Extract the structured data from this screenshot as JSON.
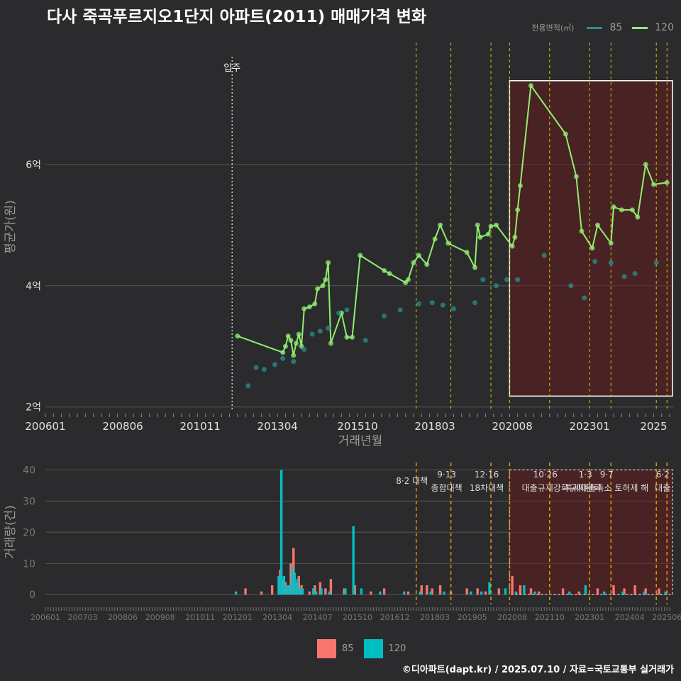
{
  "title": "다사 죽곡푸르지오1단지 아파트(2011) 매매가격 변화",
  "legend": {
    "label": "전용면적(㎡)",
    "items": [
      {
        "name": "85",
        "color": "#2a8f8f",
        "fill": "#f8766d"
      },
      {
        "name": "120",
        "color": "#90ee70",
        "fill": "#00bfc4"
      }
    ]
  },
  "credit": "©디아파트(dapt.kr) / 2025.07.10 / 자료=국토교통부 실거래가",
  "chart_data": [
    {
      "type": "line",
      "xlabel": "거래년월",
      "ylabel": "평균가(원)",
      "x_ticks": [
        "200601",
        "200806",
        "201011",
        "201304",
        "201510",
        "201803",
        "202008",
        "202301",
        "2025"
      ],
      "y_ticks": [
        {
          "value": 2,
          "label": "2억"
        },
        {
          "value": 4,
          "label": "4억"
        },
        {
          "value": 6,
          "label": "6억"
        }
      ],
      "ylim": [
        1.95,
        7.6
      ],
      "xlim": [
        "2006-01",
        "2025-07"
      ],
      "move_in": {
        "date": "2011-11",
        "label": "입주"
      },
      "policy_lines": [
        "2017-08",
        "2018-09",
        "2019-12",
        "2020-07",
        "2021-10",
        "2023-01",
        "2023-09",
        "2025-02",
        "2025-06"
      ],
      "highlight": {
        "start": "2020-07",
        "end": "2025-07",
        "y_range": [
          2.18,
          7.38
        ]
      },
      "series": [
        {
          "name": "120",
          "color": "#90ee70",
          "points": [
            [
              "2012-01",
              3.17
            ],
            [
              "2013-06",
              2.9
            ],
            [
              "2013-07",
              3.0
            ],
            [
              "2013-08",
              3.17
            ],
            [
              "2013-09",
              3.1
            ],
            [
              "2013-10",
              2.85
            ],
            [
              "2013-11",
              3.05
            ],
            [
              "2013-12",
              3.2
            ],
            [
              "2014-01",
              3.0
            ],
            [
              "2014-02",
              3.62
            ],
            [
              "2014-04",
              3.65
            ],
            [
              "2014-06",
              3.7
            ],
            [
              "2014-07",
              3.95
            ],
            [
              "2014-09",
              4.0
            ],
            [
              "2014-10",
              4.1
            ],
            [
              "2014-11",
              4.38
            ],
            [
              "2014-12",
              3.05
            ],
            [
              "2015-04",
              3.55
            ],
            [
              "2015-06",
              3.15
            ],
            [
              "2015-08",
              3.15
            ],
            [
              "2015-11",
              4.5
            ],
            [
              "2016-08",
              4.25
            ],
            [
              "2016-10",
              4.2
            ],
            [
              "2017-04",
              4.05
            ],
            [
              "2017-05",
              4.1
            ],
            [
              "2017-07",
              4.38
            ],
            [
              "2017-09",
              4.5
            ],
            [
              "2017-12",
              4.35
            ],
            [
              "2018-03",
              4.77
            ],
            [
              "2018-05",
              5.0
            ],
            [
              "2018-08",
              4.7
            ],
            [
              "2019-03",
              4.55
            ],
            [
              "2019-06",
              4.3
            ],
            [
              "2019-07",
              5.0
            ],
            [
              "2019-08",
              4.8
            ],
            [
              "2019-11",
              4.85
            ],
            [
              "2019-12",
              4.98
            ],
            [
              "2020-02",
              5.0
            ],
            [
              "2020-08",
              4.65
            ],
            [
              "2020-09",
              4.8
            ],
            [
              "2020-10",
              5.25
            ],
            [
              "2020-11",
              5.65
            ],
            [
              "2021-03",
              7.3
            ],
            [
              "2022-04",
              6.5
            ],
            [
              "2022-08",
              5.8
            ],
            [
              "2022-10",
              4.9
            ],
            [
              "2023-02",
              4.62
            ],
            [
              "2023-04",
              5.0
            ],
            [
              "2023-09",
              4.7
            ],
            [
              "2023-10",
              5.3
            ],
            [
              "2024-01",
              5.25
            ],
            [
              "2024-05",
              5.25
            ],
            [
              "2024-07",
              5.13
            ],
            [
              "2024-10",
              6.0
            ],
            [
              "2025-01",
              5.67
            ],
            [
              "2025-06",
              5.7
            ]
          ]
        },
        {
          "name": "85",
          "color": "#2a8f8f",
          "points": [
            [
              "2012-05",
              2.35
            ],
            [
              "2012-08",
              2.65
            ],
            [
              "2012-11",
              2.62
            ],
            [
              "2013-03",
              2.7
            ],
            [
              "2013-06",
              2.8
            ],
            [
              "2013-10",
              2.75
            ],
            [
              "2014-02",
              2.95
            ],
            [
              "2014-05",
              3.2
            ],
            [
              "2014-08",
              3.25
            ],
            [
              "2014-11",
              3.3
            ],
            [
              "2015-03",
              3.55
            ],
            [
              "2015-06",
              3.6
            ],
            [
              "2016-01",
              3.1
            ],
            [
              "2016-08",
              3.5
            ],
            [
              "2017-02",
              3.6
            ],
            [
              "2017-09",
              3.7
            ],
            [
              "2018-02",
              3.72
            ],
            [
              "2018-06",
              3.68
            ],
            [
              "2018-10",
              3.62
            ],
            [
              "2019-06",
              3.72
            ],
            [
              "2019-09",
              4.1
            ],
            [
              "2020-02",
              4.0
            ],
            [
              "2020-06",
              4.1
            ],
            [
              "2020-10",
              4.1
            ],
            [
              "2021-08",
              4.5
            ],
            [
              "2022-06",
              4.0
            ],
            [
              "2022-11",
              3.8
            ],
            [
              "2023-03",
              4.4
            ],
            [
              "2023-09",
              4.38
            ],
            [
              "2024-02",
              4.15
            ],
            [
              "2024-06",
              4.2
            ],
            [
              "2025-02",
              4.38
            ]
          ]
        }
      ]
    },
    {
      "type": "bar",
      "ylabel": "거래량(건)",
      "x_ticks": [
        "200601",
        "200703",
        "200806",
        "200908",
        "201011",
        "201201",
        "201304",
        "201407",
        "201510",
        "201612",
        "201803",
        "201905",
        "202008",
        "202110",
        "202301",
        "202404",
        "202506"
      ],
      "y_ticks": [
        0,
        10,
        20,
        30,
        40
      ],
      "ylim": [
        -2,
        41
      ],
      "policy_events": [
        {
          "date": "2017-08",
          "text1": "8·2 대책",
          "text2": ""
        },
        {
          "date": "2018-09",
          "text1": "9·13",
          "text2": "종합대책"
        },
        {
          "date": "2019-12",
          "text1": "12·16",
          "text2": "18차대책"
        },
        {
          "date": "2020-07",
          "text1": "",
          "text2": ""
        },
        {
          "date": "2021-10",
          "text1": "10·26",
          "text2": "대출규제강화"
        },
        {
          "date": "2023-01",
          "text1": "1·3",
          "text2": "규제완화"
        },
        {
          "date": "2023-09",
          "text1": "9·7",
          "text2": "특례대출축소 토허제 해"
        },
        {
          "date": "2025-02",
          "text1": "",
          "text2": ""
        },
        {
          "date": "2025-06",
          "text1": "6·2",
          "text2": "대출"
        }
      ],
      "highlight": {
        "start": "2020-07",
        "end": "2025-07"
      },
      "series": [
        {
          "name": "85",
          "color": "#f8766d",
          "values": [
            [
              "2012-04",
              2
            ],
            [
              "2012-10",
              1
            ],
            [
              "2013-02",
              3
            ],
            [
              "2013-05",
              8
            ],
            [
              "2013-06",
              5
            ],
            [
              "2013-07",
              4
            ],
            [
              "2013-08",
              3
            ],
            [
              "2013-09",
              10
            ],
            [
              "2013-10",
              15
            ],
            [
              "2013-11",
              4
            ],
            [
              "2013-12",
              6
            ],
            [
              "2014-01",
              3
            ],
            [
              "2014-04",
              1
            ],
            [
              "2014-06",
              3
            ],
            [
              "2014-08",
              4
            ],
            [
              "2014-10",
              2
            ],
            [
              "2014-12",
              5
            ],
            [
              "2015-05",
              2
            ],
            [
              "2015-09",
              3
            ],
            [
              "2016-03",
              1
            ],
            [
              "2016-08",
              2
            ],
            [
              "2017-05",
              1
            ],
            [
              "2017-10",
              3
            ],
            [
              "2017-12",
              3
            ],
            [
              "2018-02",
              2
            ],
            [
              "2018-05",
              3
            ],
            [
              "2018-09",
              1
            ],
            [
              "2019-03",
              2
            ],
            [
              "2019-07",
              2
            ],
            [
              "2019-10",
              1
            ],
            [
              "2020-03",
              2
            ],
            [
              "2020-08",
              6
            ],
            [
              "2020-11",
              3
            ],
            [
              "2021-03",
              2
            ],
            [
              "2021-06",
              1
            ],
            [
              "2022-03",
              2
            ],
            [
              "2022-09",
              1
            ],
            [
              "2023-04",
              2
            ],
            [
              "2023-10",
              3
            ],
            [
              "2024-02",
              2
            ],
            [
              "2024-06",
              3
            ],
            [
              "2024-10",
              2
            ],
            [
              "2025-03",
              2
            ]
          ]
        },
        {
          "name": "120",
          "color": "#00bfc4",
          "values": [
            [
              "2011-12",
              1
            ],
            [
              "2013-04",
              6
            ],
            [
              "2013-05",
              40
            ],
            [
              "2013-06",
              6
            ],
            [
              "2013-07",
              3
            ],
            [
              "2013-08",
              3
            ],
            [
              "2013-09",
              9
            ],
            [
              "2013-10",
              7
            ],
            [
              "2013-11",
              5
            ],
            [
              "2013-12",
              2
            ],
            [
              "2014-01",
              2
            ],
            [
              "2014-05",
              2
            ],
            [
              "2014-06",
              1
            ],
            [
              "2014-08",
              2
            ],
            [
              "2014-11",
              1
            ],
            [
              "2015-05",
              2
            ],
            [
              "2015-08",
              22
            ],
            [
              "2015-11",
              2
            ],
            [
              "2016-06",
              1
            ],
            [
              "2017-03",
              1
            ],
            [
              "2017-09",
              1
            ],
            [
              "2018-01",
              1
            ],
            [
              "2018-06",
              1
            ],
            [
              "2019-04",
              1
            ],
            [
              "2019-08",
              1
            ],
            [
              "2019-11",
              4
            ],
            [
              "2020-05",
              2
            ],
            [
              "2020-09",
              1
            ],
            [
              "2020-12",
              3
            ],
            [
              "2021-04",
              1
            ],
            [
              "2022-05",
              1
            ],
            [
              "2022-11",
              3
            ],
            [
              "2023-06",
              1
            ],
            [
              "2024-01",
              1
            ],
            [
              "2024-09",
              1
            ],
            [
              "2025-05",
              1
            ]
          ]
        }
      ]
    }
  ]
}
